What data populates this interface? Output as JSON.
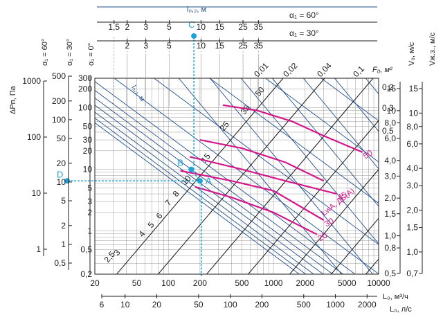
{
  "chart_data": {
    "type": "line",
    "x_axis": {
      "label": "L₀, м³/ч",
      "scale": "log",
      "range": [
        20,
        10000
      ],
      "ticks": [
        "20",
        "50",
        "100",
        "200",
        "500",
        "1000",
        "2000",
        "5000",
        "10000"
      ]
    },
    "x_axis_ls": {
      "label": "L₀, л/с",
      "ticks": [
        "6",
        "10",
        "20",
        "50",
        "100",
        "200",
        "500",
        "1000",
        "2000"
      ],
      "values": [
        6,
        10,
        20,
        50,
        100,
        200,
        500,
        1000,
        2000
      ]
    },
    "y_axis": {
      "scale": "log",
      "range": [
        0.2,
        300
      ],
      "ticks": [
        "300",
        "200",
        "100",
        "50",
        "30",
        "20",
        "10",
        "5",
        "3",
        "2",
        "1",
        "0,5",
        "0,2"
      ]
    },
    "dp_axes": [
      {
        "label": "ΔPп, Па",
        "alpha": "α₁ = 60°",
        "ticks": [
          "1000",
          "100",
          "10",
          "1"
        ],
        "values": [
          1000,
          100,
          10,
          1
        ]
      },
      {
        "label": "",
        "alpha": "α₁ = 30°",
        "ticks": [
          "500",
          "200",
          "100",
          "50",
          "20",
          "10",
          "5",
          "2",
          "1",
          "0,5"
        ],
        "values": [
          500,
          200,
          100,
          50,
          20,
          10,
          5,
          2,
          1,
          0.5
        ]
      },
      {
        "label": "",
        "alpha": "α₁ = 0°",
        "ticks": [],
        "values": []
      }
    ],
    "top_scales": {
      "title": "l₀,₂, м",
      "rows": [
        {
          "alpha": "α₁ = 60°",
          "ticks": [
            "1,5",
            "2",
            "3",
            "5",
            "10",
            "15",
            "25",
            "35"
          ],
          "values": [
            1.5,
            2,
            3,
            5,
            10,
            15,
            25,
            35
          ]
        },
        {
          "alpha": "α₁ = 30°",
          "ticks": [
            "2",
            "3",
            "5",
            "10",
            "15",
            "25",
            "35"
          ],
          "values": [
            2,
            3,
            5,
            10,
            15,
            25,
            35
          ]
        }
      ]
    },
    "f0_lines": {
      "label": "F₀, м²",
      "values": [
        "0,01",
        "0,02",
        "0,04",
        "0,1",
        "0,2",
        "0,3",
        "0,5"
      ]
    },
    "v0_axis": {
      "label": "V₀, м/с",
      "ticks": [
        "15",
        "10",
        "8,0",
        "6,0",
        "4,0",
        "3,0",
        "2,0",
        "1,5",
        "1,0",
        "0,8",
        "0,5"
      ]
    },
    "vx_axis": {
      "label": "Vж.з., м/с",
      "ticks": [
        "15",
        "10",
        "8,0",
        "6,0",
        "4,0",
        "3,0",
        "2,0",
        "1,5",
        "1,0",
        "0,7"
      ]
    },
    "l02_lines": {
      "label": "l₀,₂, м",
      "values": [
        "2,5",
        "3",
        "4",
        "5",
        "6",
        "7",
        "8",
        "10",
        "15",
        "25",
        "35",
        "50"
      ]
    },
    "noise_curves": {
      "label": "LwA, ДБ(А)",
      "color": "#d6168b",
      "series": [
        {
          "name": "20",
          "points": [
            [
              180,
              5.2
            ],
            [
              400,
              3.5
            ],
            [
              1000,
              2.0
            ],
            [
              2600,
              0.88
            ]
          ]
        },
        {
          "name": "30",
          "points": [
            [
              130,
              9.5
            ],
            [
              400,
              6.5
            ],
            [
              1000,
              4.5
            ],
            [
              3000,
              1.5
            ]
          ]
        },
        {
          "name": "45",
          "points": [
            [
              160,
              16
            ],
            [
              500,
              10
            ],
            [
              1300,
              6.5
            ],
            [
              4000,
              4.0
            ]
          ]
        },
        {
          "name": "50",
          "points": [
            [
              330,
              110
            ],
            [
              700,
              90
            ],
            [
              1500,
              60
            ],
            [
              3000,
              35
            ],
            [
              7000,
              19
            ]
          ]
        },
        {
          "name": "",
          "points": [
            [
              200,
              30
            ],
            [
              500,
              22
            ],
            [
              1300,
              13
            ],
            [
              3000,
              6.5
            ]
          ]
        }
      ]
    },
    "construction_points": [
      {
        "name": "A",
        "x": 200,
        "y": 6.5
      },
      {
        "name": "B",
        "x": 165,
        "y": 10
      },
      {
        "name": "C",
        "x": 175,
        "y": null
      },
      {
        "name": "D",
        "x": null,
        "y": 6.5
      }
    ],
    "grid": true
  },
  "colors": {
    "axis": "#1c1c1c",
    "blue_lines": "#1f4e8c",
    "black_lines": "#111111",
    "noise": "#d6168b",
    "guide": "#1ea3d9",
    "grid": "#9a9a9a"
  }
}
